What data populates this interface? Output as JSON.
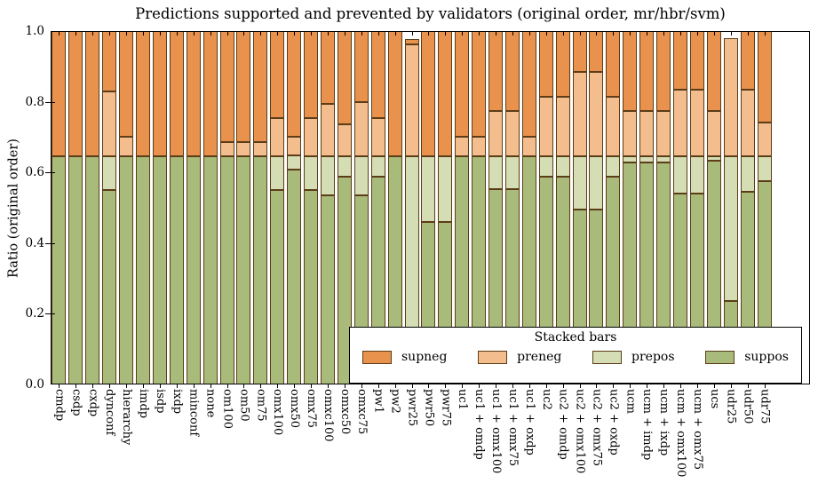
{
  "title": "Predictions supported and prevented by validators (original order, mr/hbr/svm)",
  "ylabel": "Ratio (original order)",
  "colors": {
    "supneg": "#e8924d",
    "preneg": "#f3bd8e",
    "prepos": "#d4ddb3",
    "suppos": "#a9bb7b",
    "edge": "#5c3d17",
    "axis": "#000000",
    "background": "#ffffff"
  },
  "legend": {
    "title": "Stacked bars",
    "entries": [
      {
        "label": "supneg",
        "color": "#e8924d"
      },
      {
        "label": "preneg",
        "color": "#f3bd8e"
      },
      {
        "label": "prepos",
        "color": "#d4ddb3"
      },
      {
        "label": "suppos",
        "color": "#a9bb7b"
      }
    ]
  },
  "chart_data": {
    "type": "bar",
    "stacked": true,
    "title": "Predictions supported and prevented by validators (original order, mr/hbr/svm)",
    "xlabel": "",
    "ylabel": "Ratio (original order)",
    "ylim": [
      0.0,
      1.0
    ],
    "yticks": [
      "0.0",
      "0.2",
      "0.4",
      "0.6",
      "0.8",
      "1.0"
    ],
    "grid": false,
    "legend_title": "Stacked bars",
    "legend_position": "lower right",
    "categories": [
      "cmdp",
      "csdp",
      "cxdp",
      "dynconf",
      "hierarchy",
      "imdp",
      "isdp",
      "ixdp",
      "minconf",
      "none",
      "om100",
      "om50",
      "om75",
      "omx100",
      "omx50",
      "omx75",
      "omxc100",
      "omxc50",
      "omxc75",
      "pw1",
      "pw2",
      "pwr25",
      "pwr50",
      "pwr75",
      "uc1",
      "uc1 + omdp",
      "uc1 + omx100",
      "uc1 + omx75",
      "uc1 + oxdp",
      "uc2",
      "uc2 + omdp",
      "uc2 + omx100",
      "uc2 + omx75",
      "uc2 + oxdp",
      "ucm",
      "ucm + imdp",
      "ucm + ixdp",
      "ucm + omx100",
      "ucm + omx75",
      "ucs",
      "udr25",
      "udr50",
      "udr75"
    ],
    "series": [
      {
        "name": "suppos",
        "color": "#a9bb7b",
        "values": [
          0.645,
          0.645,
          0.645,
          0.55,
          0.645,
          0.645,
          0.645,
          0.645,
          0.645,
          0.645,
          0.645,
          0.645,
          0.645,
          0.55,
          0.608,
          0.55,
          0.535,
          0.589,
          0.535,
          0.589,
          0.645,
          0.08,
          0.46,
          0.46,
          0.645,
          0.645,
          0.552,
          0.552,
          0.645,
          0.589,
          0.589,
          0.495,
          0.495,
          0.589,
          0.627,
          0.627,
          0.627,
          0.539,
          0.539,
          0.632,
          0.237,
          0.545,
          0.575
        ]
      },
      {
        "name": "prepos",
        "color": "#d4ddb3",
        "values": [
          0,
          0,
          0,
          0.095,
          0,
          0,
          0,
          0,
          0,
          0,
          0,
          0,
          0,
          0.095,
          0.04,
          0.095,
          0.11,
          0.056,
          0.11,
          0.056,
          0,
          0.565,
          0.185,
          0.185,
          0,
          0,
          0.093,
          0.093,
          0,
          0.056,
          0.056,
          0.15,
          0.15,
          0.056,
          0.018,
          0.018,
          0.018,
          0.106,
          0.106,
          0.013,
          0.408,
          0.1,
          0.07
        ]
      },
      {
        "name": "preneg",
        "color": "#f3bd8e",
        "values": [
          0,
          0,
          0,
          0.185,
          0.055,
          0,
          0,
          0,
          0,
          0,
          0.04,
          0.04,
          0.04,
          0.11,
          0.052,
          0.11,
          0.15,
          0.09,
          0.155,
          0.11,
          0,
          0.318,
          0,
          0,
          0.055,
          0.055,
          0.13,
          0.13,
          0.055,
          0.17,
          0.17,
          0.24,
          0.24,
          0.17,
          0.13,
          0.13,
          0.13,
          0.188,
          0.188,
          0.13,
          0.335,
          0.19,
          0.095
        ]
      },
      {
        "name": "supneg",
        "color": "#e8924d",
        "values": [
          0.355,
          0.355,
          0.355,
          0.17,
          0.3,
          0.355,
          0.355,
          0.355,
          0.355,
          0.355,
          0.315,
          0.315,
          0.315,
          0.245,
          0.3,
          0.245,
          0.205,
          0.265,
          0.2,
          0.245,
          0.355,
          0.015,
          0.355,
          0.355,
          0.3,
          0.3,
          0.225,
          0.225,
          0.3,
          0.185,
          0.185,
          0.115,
          0.115,
          0.185,
          0.225,
          0.225,
          0.225,
          0.167,
          0.167,
          0.225,
          0,
          0.165,
          0.26
        ]
      }
    ]
  }
}
